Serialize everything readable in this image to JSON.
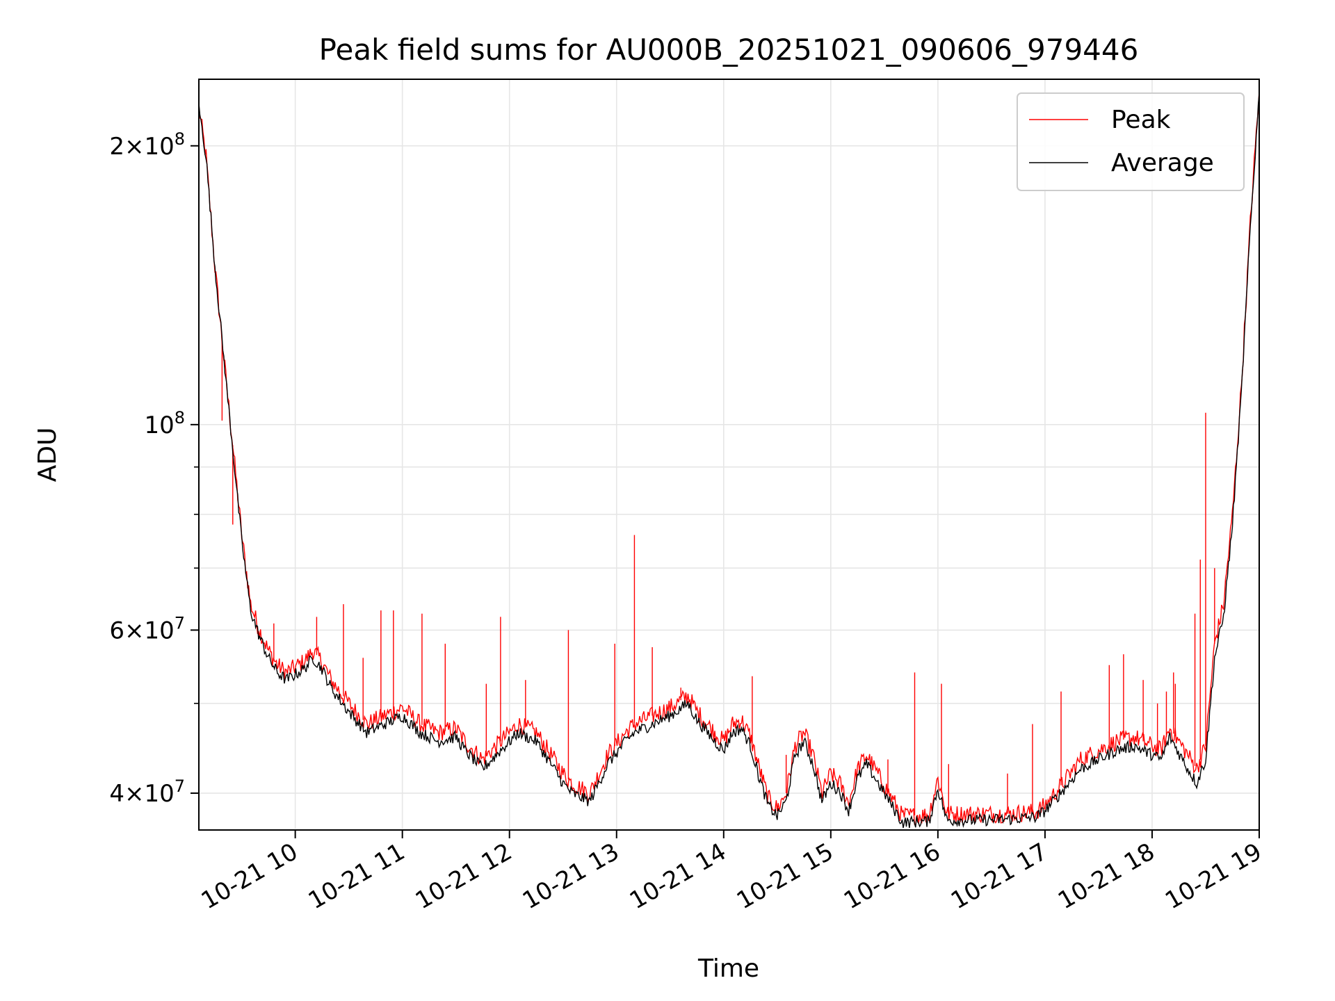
{
  "chart_data": {
    "type": "line",
    "title": "Peak field sums for AU000B_20251021_090606_979446",
    "xlabel": "Time",
    "ylabel": "ADU",
    "y_scale": "log",
    "grid": true,
    "legend": "top-right",
    "xlim": [
      "2025-10-21 09:06",
      "2025-10-21 19:00"
    ],
    "ylim": [
      36500000,
      236000000
    ],
    "x_ticks": [
      {
        "value": "2025-10-21 10:00",
        "label": "10-21 10"
      },
      {
        "value": "2025-10-21 11:00",
        "label": "10-21 11"
      },
      {
        "value": "2025-10-21 12:00",
        "label": "10-21 12"
      },
      {
        "value": "2025-10-21 13:00",
        "label": "10-21 13"
      },
      {
        "value": "2025-10-21 14:00",
        "label": "10-21 14"
      },
      {
        "value": "2025-10-21 15:00",
        "label": "10-21 15"
      },
      {
        "value": "2025-10-21 16:00",
        "label": "10-21 16"
      },
      {
        "value": "2025-10-21 17:00",
        "label": "10-21 17"
      },
      {
        "value": "2025-10-21 18:00",
        "label": "10-21 18"
      },
      {
        "value": "2025-10-21 19:00",
        "label": "10-21 19"
      }
    ],
    "y_ticks_major": [
      {
        "value": 40000000,
        "mantissa": "4",
        "exponent": "7"
      },
      {
        "value": 60000000,
        "mantissa": "6",
        "exponent": "7"
      },
      {
        "value": 100000000,
        "mantissa": "",
        "exponent": "8"
      },
      {
        "value": 200000000,
        "mantissa": "2",
        "exponent": "8"
      }
    ],
    "y_ticks_minor": [
      50000000,
      70000000,
      80000000,
      90000000
    ],
    "series": [
      {
        "name": "Peak",
        "color": "#ff0000",
        "x": [
          "2025-10-21 09:06",
          "2025-10-21 09:10",
          "2025-10-21 09:15",
          "2025-10-21 09:20",
          "2025-10-21 09:25",
          "2025-10-21 09:30",
          "2025-10-21 09:35",
          "2025-10-21 09:40",
          "2025-10-21 09:45",
          "2025-10-21 09:50",
          "2025-10-21 09:55",
          "2025-10-21 10:05",
          "2025-10-21 10:10",
          "2025-10-21 10:15",
          "2025-10-21 10:20",
          "2025-10-21 10:30",
          "2025-10-21 10:40",
          "2025-10-21 10:50",
          "2025-10-21 11:00",
          "2025-10-21 11:10",
          "2025-10-21 11:20",
          "2025-10-21 11:30",
          "2025-10-21 11:35",
          "2025-10-21 11:45",
          "2025-10-21 11:55",
          "2025-10-21 12:05",
          "2025-10-21 12:15",
          "2025-10-21 12:25",
          "2025-10-21 12:30",
          "2025-10-21 12:35",
          "2025-10-21 12:45",
          "2025-10-21 12:55",
          "2025-10-21 13:05",
          "2025-10-21 13:10",
          "2025-10-21 13:20",
          "2025-10-21 13:30",
          "2025-10-21 13:40",
          "2025-10-21 13:45",
          "2025-10-21 13:55",
          "2025-10-21 14:00",
          "2025-10-21 14:05",
          "2025-10-21 14:10",
          "2025-10-21 14:15",
          "2025-10-21 14:20",
          "2025-10-21 14:25",
          "2025-10-21 14:30",
          "2025-10-21 14:35",
          "2025-10-21 14:40",
          "2025-10-21 14:45",
          "2025-10-21 14:50",
          "2025-10-21 14:55",
          "2025-10-21 15:00",
          "2025-10-21 15:05",
          "2025-10-21 15:10",
          "2025-10-21 15:15",
          "2025-10-21 15:20",
          "2025-10-21 15:40",
          "2025-10-21 15:55",
          "2025-10-21 16:00",
          "2025-10-21 16:05",
          "2025-10-21 16:20",
          "2025-10-21 16:40",
          "2025-10-21 16:55",
          "2025-10-21 17:00",
          "2025-10-21 17:10",
          "2025-10-21 17:20",
          "2025-10-21 17:30",
          "2025-10-21 17:40",
          "2025-10-21 17:50",
          "2025-10-21 18:00",
          "2025-10-21 18:05",
          "2025-10-21 18:10",
          "2025-10-21 18:20",
          "2025-10-21 18:25",
          "2025-10-21 18:30",
          "2025-10-21 18:35",
          "2025-10-21 18:40",
          "2025-10-21 18:45",
          "2025-10-21 18:50",
          "2025-10-21 18:55",
          "2025-10-21 19:00"
        ],
        "y": [
          220000000,
          195000000,
          148000000,
          118000000,
          95000000,
          76000000,
          64000000,
          60000000,
          57000000,
          55000000,
          54000000,
          55500000,
          57000000,
          55500000,
          53000000,
          50000000,
          47500000,
          48500000,
          49500000,
          47500000,
          46500000,
          47000000,
          45500000,
          43500000,
          45500000,
          47500000,
          46500000,
          43500000,
          42000000,
          41000000,
          40000000,
          44000000,
          46500000,
          47500000,
          48500000,
          49500000,
          51000000,
          49000000,
          46500000,
          45500000,
          47500000,
          48000000,
          46000000,
          42500000,
          39500000,
          38500000,
          40000000,
          45000000,
          46500000,
          44000000,
          40000000,
          42000000,
          41000000,
          39000000,
          42500000,
          44000000,
          37800000,
          37900000,
          41500000,
          38000000,
          38000000,
          38000000,
          38200000,
          38800000,
          41000000,
          43500000,
          44500000,
          45500000,
          46000000,
          45000000,
          44500000,
          47000000,
          44000000,
          42500000,
          45000000,
          58000000,
          64000000,
          80000000,
          110000000,
          165000000,
          230000000
        ]
      },
      {
        "name": "Average",
        "color": "#000000",
        "x": [
          "2025-10-21 09:06",
          "2025-10-21 09:10",
          "2025-10-21 09:15",
          "2025-10-21 09:20",
          "2025-10-21 09:25",
          "2025-10-21 09:30",
          "2025-10-21 09:35",
          "2025-10-21 09:40",
          "2025-10-21 09:45",
          "2025-10-21 09:50",
          "2025-10-21 09:55",
          "2025-10-21 10:05",
          "2025-10-21 10:10",
          "2025-10-21 10:15",
          "2025-10-21 10:20",
          "2025-10-21 10:30",
          "2025-10-21 10:40",
          "2025-10-21 10:50",
          "2025-10-21 11:00",
          "2025-10-21 11:10",
          "2025-10-21 11:20",
          "2025-10-21 11:30",
          "2025-10-21 11:35",
          "2025-10-21 11:45",
          "2025-10-21 11:55",
          "2025-10-21 12:05",
          "2025-10-21 12:15",
          "2025-10-21 12:25",
          "2025-10-21 12:30",
          "2025-10-21 12:35",
          "2025-10-21 12:45",
          "2025-10-21 12:55",
          "2025-10-21 13:05",
          "2025-10-21 13:10",
          "2025-10-21 13:20",
          "2025-10-21 13:30",
          "2025-10-21 13:40",
          "2025-10-21 13:45",
          "2025-10-21 13:55",
          "2025-10-21 14:00",
          "2025-10-21 14:05",
          "2025-10-21 14:10",
          "2025-10-21 14:15",
          "2025-10-21 14:20",
          "2025-10-21 14:25",
          "2025-10-21 14:30",
          "2025-10-21 14:35",
          "2025-10-21 14:40",
          "2025-10-21 14:45",
          "2025-10-21 14:50",
          "2025-10-21 14:55",
          "2025-10-21 15:00",
          "2025-10-21 15:05",
          "2025-10-21 15:10",
          "2025-10-21 15:15",
          "2025-10-21 15:20",
          "2025-10-21 15:40",
          "2025-10-21 15:55",
          "2025-10-21 16:00",
          "2025-10-21 16:05",
          "2025-10-21 16:20",
          "2025-10-21 16:40",
          "2025-10-21 16:55",
          "2025-10-21 17:00",
          "2025-10-21 17:10",
          "2025-10-21 17:20",
          "2025-10-21 17:30",
          "2025-10-21 17:40",
          "2025-10-21 17:50",
          "2025-10-21 18:00",
          "2025-10-21 18:05",
          "2025-10-21 18:10",
          "2025-10-21 18:20",
          "2025-10-21 18:25",
          "2025-10-21 18:30",
          "2025-10-21 18:35",
          "2025-10-21 18:40",
          "2025-10-21 18:45",
          "2025-10-21 18:50",
          "2025-10-21 18:55",
          "2025-10-21 19:00"
        ],
        "y": [
          220000000,
          195000000,
          148000000,
          118000000,
          94000000,
          75000000,
          63000000,
          59000000,
          56000000,
          54000000,
          53000000,
          54500000,
          56000000,
          54500000,
          52000000,
          49000000,
          46500000,
          47500000,
          48500000,
          46500000,
          45500000,
          46000000,
          44500000,
          42500000,
          44500000,
          46500000,
          45500000,
          42500000,
          41000000,
          40000000,
          39200000,
          43000000,
          45500000,
          46500000,
          47500000,
          48500000,
          50000000,
          48000000,
          45500000,
          44500000,
          46500000,
          47000000,
          45000000,
          41500000,
          38800000,
          37800000,
          39200000,
          44000000,
          45500000,
          43000000,
          39200000,
          41000000,
          40200000,
          38300000,
          41500000,
          43000000,
          37200000,
          37300000,
          40500000,
          37400000,
          37400000,
          37500000,
          37700000,
          38300000,
          40300000,
          42500000,
          43500000,
          44500000,
          45000000,
          44000000,
          43500000,
          46000000,
          42500000,
          41000000,
          43500000,
          56000000,
          62000000,
          78000000,
          108000000,
          163000000,
          228000000
        ]
      }
    ],
    "peak_spikes": [
      {
        "x": "2025-10-21 09:19",
        "y": 101000000
      },
      {
        "x": "2025-10-21 09:25",
        "y": 78000000
      },
      {
        "x": "2025-10-21 09:48",
        "y": 61000000
      },
      {
        "x": "2025-10-21 10:12",
        "y": 62000000
      },
      {
        "x": "2025-10-21 10:27",
        "y": 64000000
      },
      {
        "x": "2025-10-21 10:38",
        "y": 56000000
      },
      {
        "x": "2025-10-21 10:48",
        "y": 63000000
      },
      {
        "x": "2025-10-21 10:55",
        "y": 63000000
      },
      {
        "x": "2025-10-21 11:11",
        "y": 62500000
      },
      {
        "x": "2025-10-21 11:24",
        "y": 58000000
      },
      {
        "x": "2025-10-21 11:55",
        "y": 62000000
      },
      {
        "x": "2025-10-21 11:47",
        "y": 52500000
      },
      {
        "x": "2025-10-21 12:09",
        "y": 53000000
      },
      {
        "x": "2025-10-21 12:33",
        "y": 60000000
      },
      {
        "x": "2025-10-21 12:59",
        "y": 58000000
      },
      {
        "x": "2025-10-21 13:10",
        "y": 76000000
      },
      {
        "x": "2025-10-21 13:20",
        "y": 57500000
      },
      {
        "x": "2025-10-21 13:36",
        "y": 52000000
      },
      {
        "x": "2025-10-21 14:16",
        "y": 53500000
      },
      {
        "x": "2025-10-21 14:35",
        "y": 44000000
      },
      {
        "x": "2025-10-21 15:32",
        "y": 43500000
      },
      {
        "x": "2025-10-21 15:47",
        "y": 54000000
      },
      {
        "x": "2025-10-21 16:02",
        "y": 52500000
      },
      {
        "x": "2025-10-21 16:06",
        "y": 43000000
      },
      {
        "x": "2025-10-21 16:39",
        "y": 42000000
      },
      {
        "x": "2025-10-21 16:53",
        "y": 47500000
      },
      {
        "x": "2025-10-21 17:09",
        "y": 51500000
      },
      {
        "x": "2025-10-21 17:36",
        "y": 55000000
      },
      {
        "x": "2025-10-21 17:44",
        "y": 56500000
      },
      {
        "x": "2025-10-21 17:55",
        "y": 53000000
      },
      {
        "x": "2025-10-21 18:03",
        "y": 50000000
      },
      {
        "x": "2025-10-21 18:08",
        "y": 51500000
      },
      {
        "x": "2025-10-21 18:12",
        "y": 54000000
      },
      {
        "x": "2025-10-21 18:13",
        "y": 52500000
      },
      {
        "x": "2025-10-21 18:24",
        "y": 62500000
      },
      {
        "x": "2025-10-21 18:27",
        "y": 71500000
      },
      {
        "x": "2025-10-21 18:30",
        "y": 103000000
      },
      {
        "x": "2025-10-21 18:35",
        "y": 70000000
      }
    ]
  }
}
